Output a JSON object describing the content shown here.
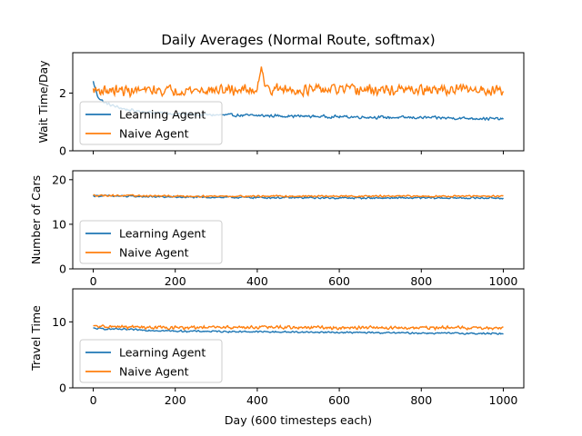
{
  "chart_data": [
    {
      "type": "line",
      "title": "Daily Averages (Normal Route, softmax)",
      "xlabel": "",
      "ylabel": "Wait Time/Day",
      "xlim": [
        -50,
        1050
      ],
      "ylim": [
        0,
        3.4
      ],
      "xticks": [
        0,
        200,
        400,
        600,
        800,
        1000
      ],
      "yticks": [
        0,
        2
      ],
      "show_xtick_labels": false,
      "grid": false,
      "legend": "lower-left",
      "series": [
        {
          "name": "Learning Agent",
          "color": "#1f77b4",
          "x": [
            0,
            10,
            20,
            30,
            50,
            75,
            100,
            150,
            200,
            250,
            300,
            350,
            400,
            450,
            500,
            550,
            600,
            650,
            700,
            750,
            800,
            850,
            900,
            950,
            1000
          ],
          "y": [
            2.4,
            1.9,
            1.75,
            1.65,
            1.55,
            1.45,
            1.38,
            1.32,
            1.28,
            1.25,
            1.24,
            1.23,
            1.22,
            1.21,
            1.2,
            1.19,
            1.18,
            1.17,
            1.16,
            1.15,
            1.15,
            1.14,
            1.13,
            1.12,
            1.1
          ],
          "noise": 0.06
        },
        {
          "name": "Naive Agent",
          "color": "#ff7f0e",
          "x": [
            0,
            100,
            200,
            300,
            400,
            410,
            420,
            500,
            600,
            700,
            800,
            900,
            1000
          ],
          "y": [
            2.1,
            2.08,
            2.1,
            2.1,
            2.12,
            3.05,
            2.15,
            2.1,
            2.12,
            2.1,
            2.1,
            2.12,
            2.1
          ],
          "noise": 0.22
        }
      ]
    },
    {
      "type": "line",
      "title": "",
      "xlabel": "",
      "ylabel": "Number of Cars",
      "xlim": [
        -50,
        1050
      ],
      "ylim": [
        0,
        22
      ],
      "xticks": [
        0,
        200,
        400,
        600,
        800,
        1000
      ],
      "yticks": [
        0,
        10,
        20
      ],
      "show_xtick_labels": true,
      "grid": false,
      "legend": "lower-left",
      "series": [
        {
          "name": "Learning Agent",
          "color": "#1f77b4",
          "x": [
            0,
            200,
            400,
            600,
            800,
            1000
          ],
          "y": [
            16.4,
            16.1,
            16.0,
            15.9,
            15.9,
            15.9
          ],
          "noise": 0.25
        },
        {
          "name": "Naive Agent",
          "color": "#ff7f0e",
          "x": [
            0,
            200,
            400,
            600,
            800,
            1000
          ],
          "y": [
            16.5,
            16.3,
            16.3,
            16.3,
            16.3,
            16.3
          ],
          "noise": 0.22
        }
      ]
    },
    {
      "type": "line",
      "title": "",
      "xlabel": "Day (600 timesteps each)",
      "ylabel": "Travel Time",
      "xlim": [
        -50,
        1050
      ],
      "ylim": [
        0,
        15
      ],
      "xticks": [
        0,
        200,
        400,
        600,
        800,
        1000
      ],
      "yticks": [
        0,
        10
      ],
      "show_xtick_labels": true,
      "grid": false,
      "legend": "lower-left",
      "series": [
        {
          "name": "Learning Agent",
          "color": "#1f77b4",
          "x": [
            0,
            100,
            200,
            400,
            600,
            800,
            1000
          ],
          "y": [
            9.0,
            8.8,
            8.6,
            8.5,
            8.4,
            8.3,
            8.2
          ],
          "noise": 0.15
        },
        {
          "name": "Naive Agent",
          "color": "#ff7f0e",
          "x": [
            0,
            200,
            400,
            600,
            800,
            1000
          ],
          "y": [
            9.3,
            9.1,
            9.2,
            9.1,
            9.1,
            9.1
          ],
          "noise": 0.3
        }
      ]
    }
  ]
}
